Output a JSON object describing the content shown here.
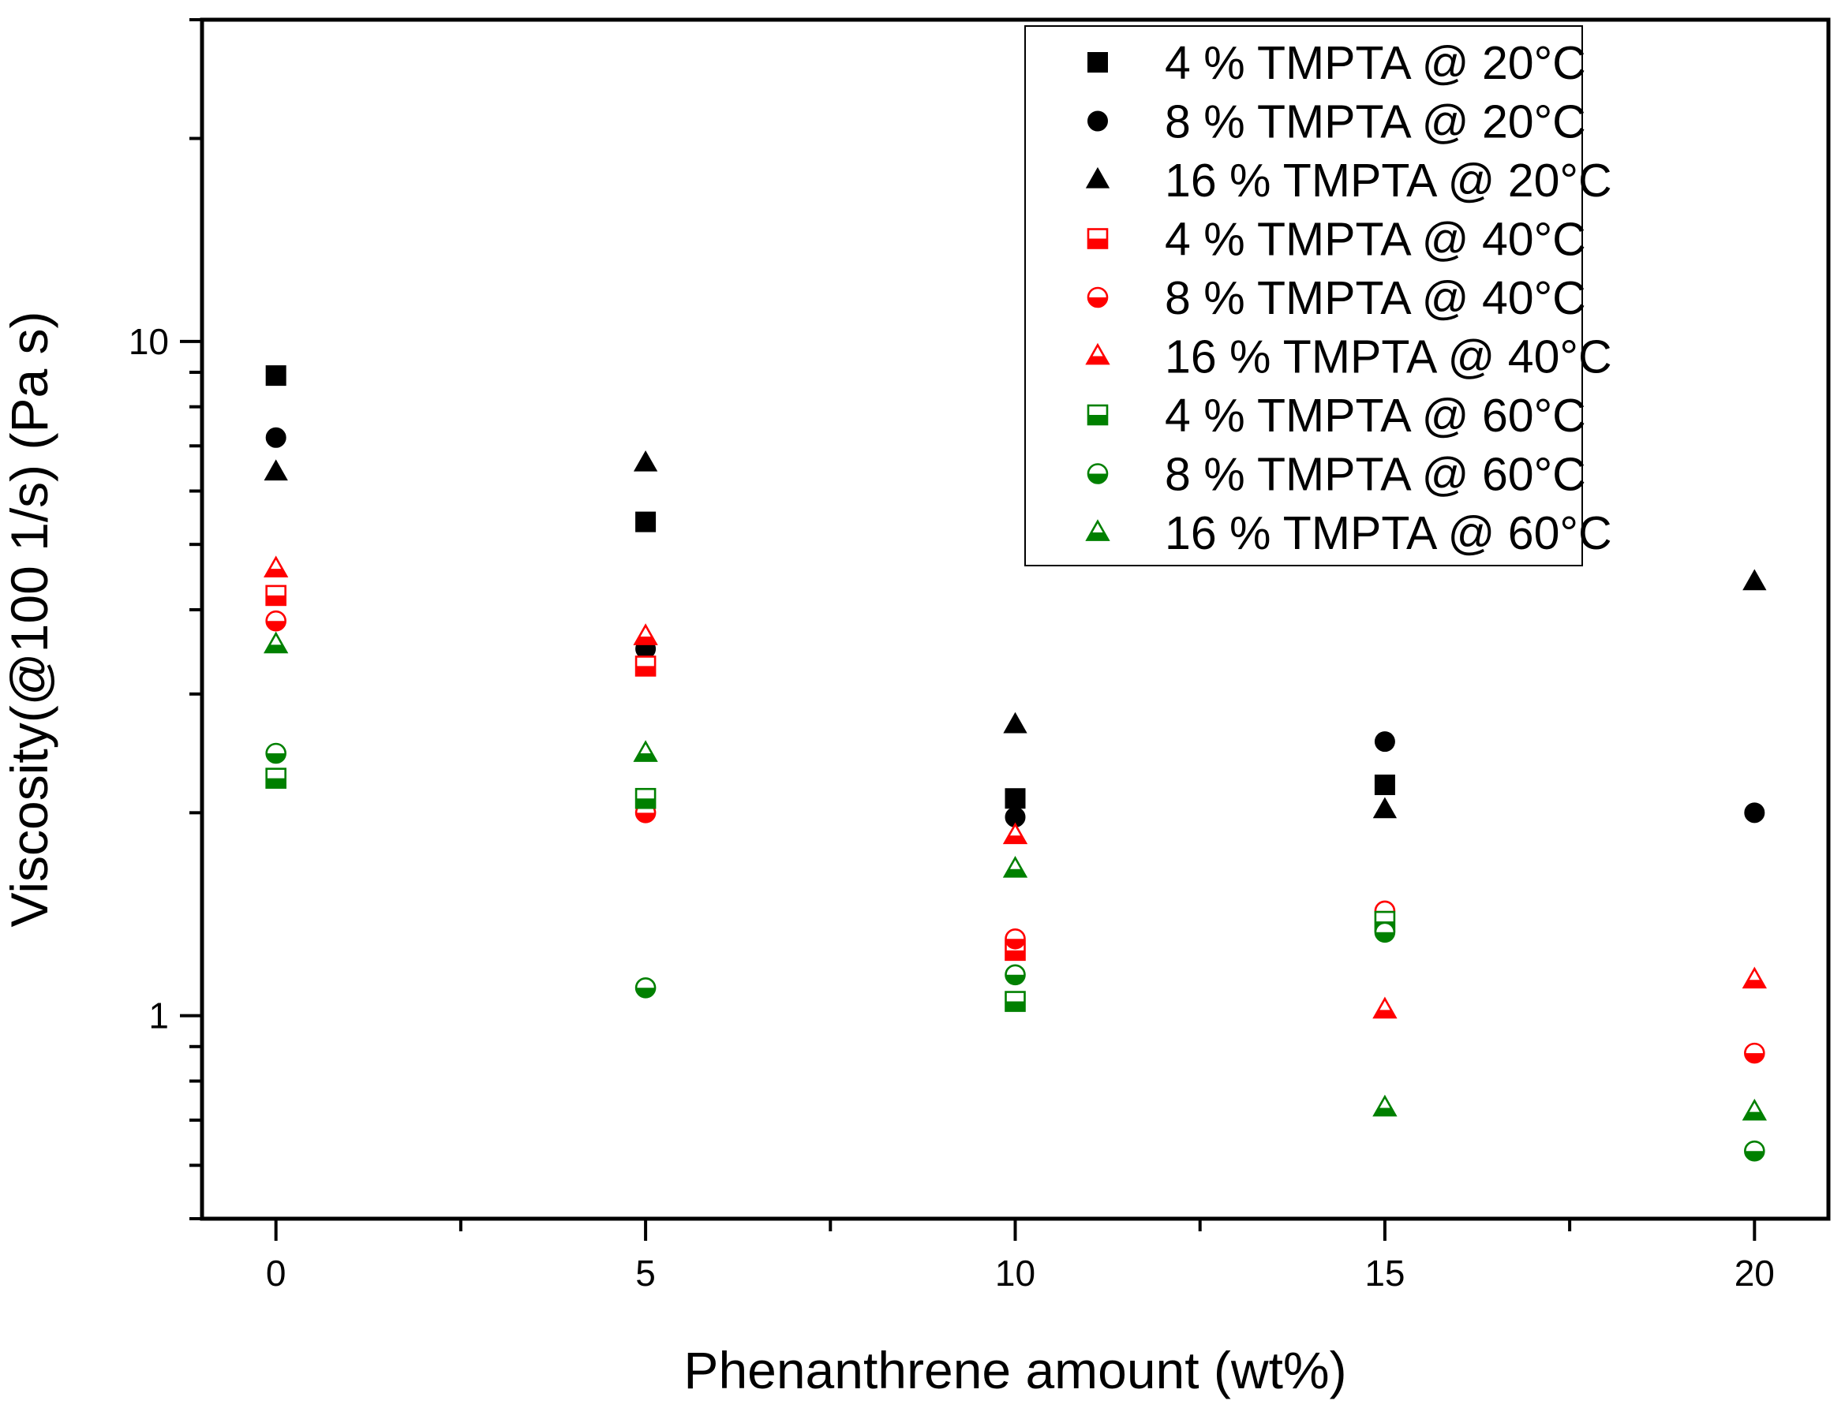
{
  "chart_data": {
    "type": "scatter",
    "xlabel": "Phenanthrene amount (wt%)",
    "ylabel": "Viscosity(@100 1/s) (Pa s)",
    "xlim": [
      -1,
      21
    ],
    "ylim": [
      0.5,
      30
    ],
    "yscale": "log",
    "x_ticks": [
      0,
      5,
      10,
      15,
      20
    ],
    "x_tick_labels": [
      "0",
      "5",
      "10",
      "15",
      "20"
    ],
    "y_tick_labels": [
      "1",
      "10"
    ],
    "legend_position": "top-right",
    "grid": false,
    "series": [
      {
        "name": "4 % TMPTA @ 20°C",
        "marker": "square",
        "fill": "full",
        "color": "#000000",
        "x": [
          0,
          5,
          10,
          15
        ],
        "y": [
          8.9,
          5.4,
          2.1,
          2.2
        ]
      },
      {
        "name": "8 % TMPTA @ 20°C",
        "marker": "circle",
        "fill": "full",
        "color": "#000000",
        "x": [
          0,
          5,
          10,
          15,
          20
        ],
        "y": [
          7.2,
          3.5,
          1.97,
          2.55,
          2.0
        ]
      },
      {
        "name": "16 % TMPTA @ 20°C",
        "marker": "triangle",
        "fill": "full",
        "color": "#000000",
        "x": [
          0,
          5,
          10,
          15,
          20
        ],
        "y": [
          6.4,
          6.6,
          2.7,
          2.02,
          4.4
        ]
      },
      {
        "name": "4 % TMPTA @ 40°C",
        "marker": "square",
        "fill": "half",
        "color": "#ff0000",
        "x": [
          0,
          5,
          10
        ],
        "y": [
          4.2,
          3.3,
          1.25
        ]
      },
      {
        "name": "8 % TMPTA @ 40°C",
        "marker": "circle",
        "fill": "half",
        "color": "#ff0000",
        "x": [
          0,
          5,
          10,
          15,
          20
        ],
        "y": [
          3.85,
          2.0,
          1.3,
          1.43,
          0.88
        ]
      },
      {
        "name": "16 % TMPTA @ 40°C",
        "marker": "triangle",
        "fill": "half",
        "color": "#ff0000",
        "x": [
          0,
          5,
          10,
          15,
          20
        ],
        "y": [
          4.6,
          3.65,
          1.85,
          1.02,
          1.13
        ]
      },
      {
        "name": "4 % TMPTA @ 60°C",
        "marker": "square",
        "fill": "half",
        "color": "#008000",
        "x": [
          0,
          5,
          10,
          15
        ],
        "y": [
          2.25,
          2.1,
          1.05,
          1.38
        ]
      },
      {
        "name": "8 % TMPTA @ 60°C",
        "marker": "circle",
        "fill": "half",
        "color": "#008000",
        "x": [
          0,
          5,
          10,
          15,
          20
        ],
        "y": [
          2.45,
          1.1,
          1.15,
          1.33,
          0.63
        ]
      },
      {
        "name": "16 % TMPTA @ 60°C",
        "marker": "triangle",
        "fill": "half",
        "color": "#008000",
        "x": [
          0,
          5,
          10,
          15,
          20
        ],
        "y": [
          3.55,
          2.45,
          1.65,
          0.73,
          0.72
        ]
      }
    ]
  }
}
